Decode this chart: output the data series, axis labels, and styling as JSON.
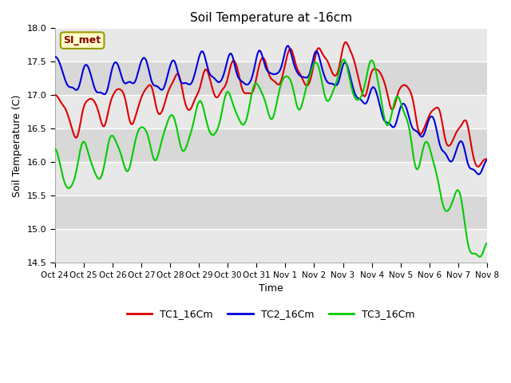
{
  "title": "Soil Temperature at -16cm",
  "xlabel": "Time",
  "ylabel": "Soil Temperature (C)",
  "ylim": [
    14.5,
    18.0
  ],
  "background_color": "#ffffff",
  "plot_bg_color": "#e8e8e8",
  "grid_color": "#ffffff",
  "line_colors": {
    "TC1_16Cm": "#dd0000",
    "TC2_16Cm": "#0000dd",
    "TC3_16Cm": "#00cc00"
  },
  "line_width": 1.5,
  "legend_labels": [
    "TC1_16Cm",
    "TC2_16Cm",
    "TC3_16Cm"
  ],
  "annotation_text": "SI_met",
  "annotation_bg": "#ffffcc",
  "annotation_border": "#999900",
  "annotation_text_color": "#880000",
  "x_tick_labels": [
    "Oct 24",
    "Oct 25",
    "Oct 26",
    "Oct 27",
    "Oct 28",
    "Oct 29",
    "Oct 30",
    "Oct 31",
    "Nov 1",
    "Nov 2",
    "Nov 3",
    "Nov 4",
    "Nov 5",
    "Nov 6",
    "Nov 7",
    "Nov 8"
  ],
  "yticks": [
    14.5,
    15.0,
    15.5,
    16.0,
    16.5,
    17.0,
    17.5,
    18.0
  ],
  "band_colors": [
    "#e8e8e8",
    "#d8d8d8"
  ],
  "n_days": 15
}
